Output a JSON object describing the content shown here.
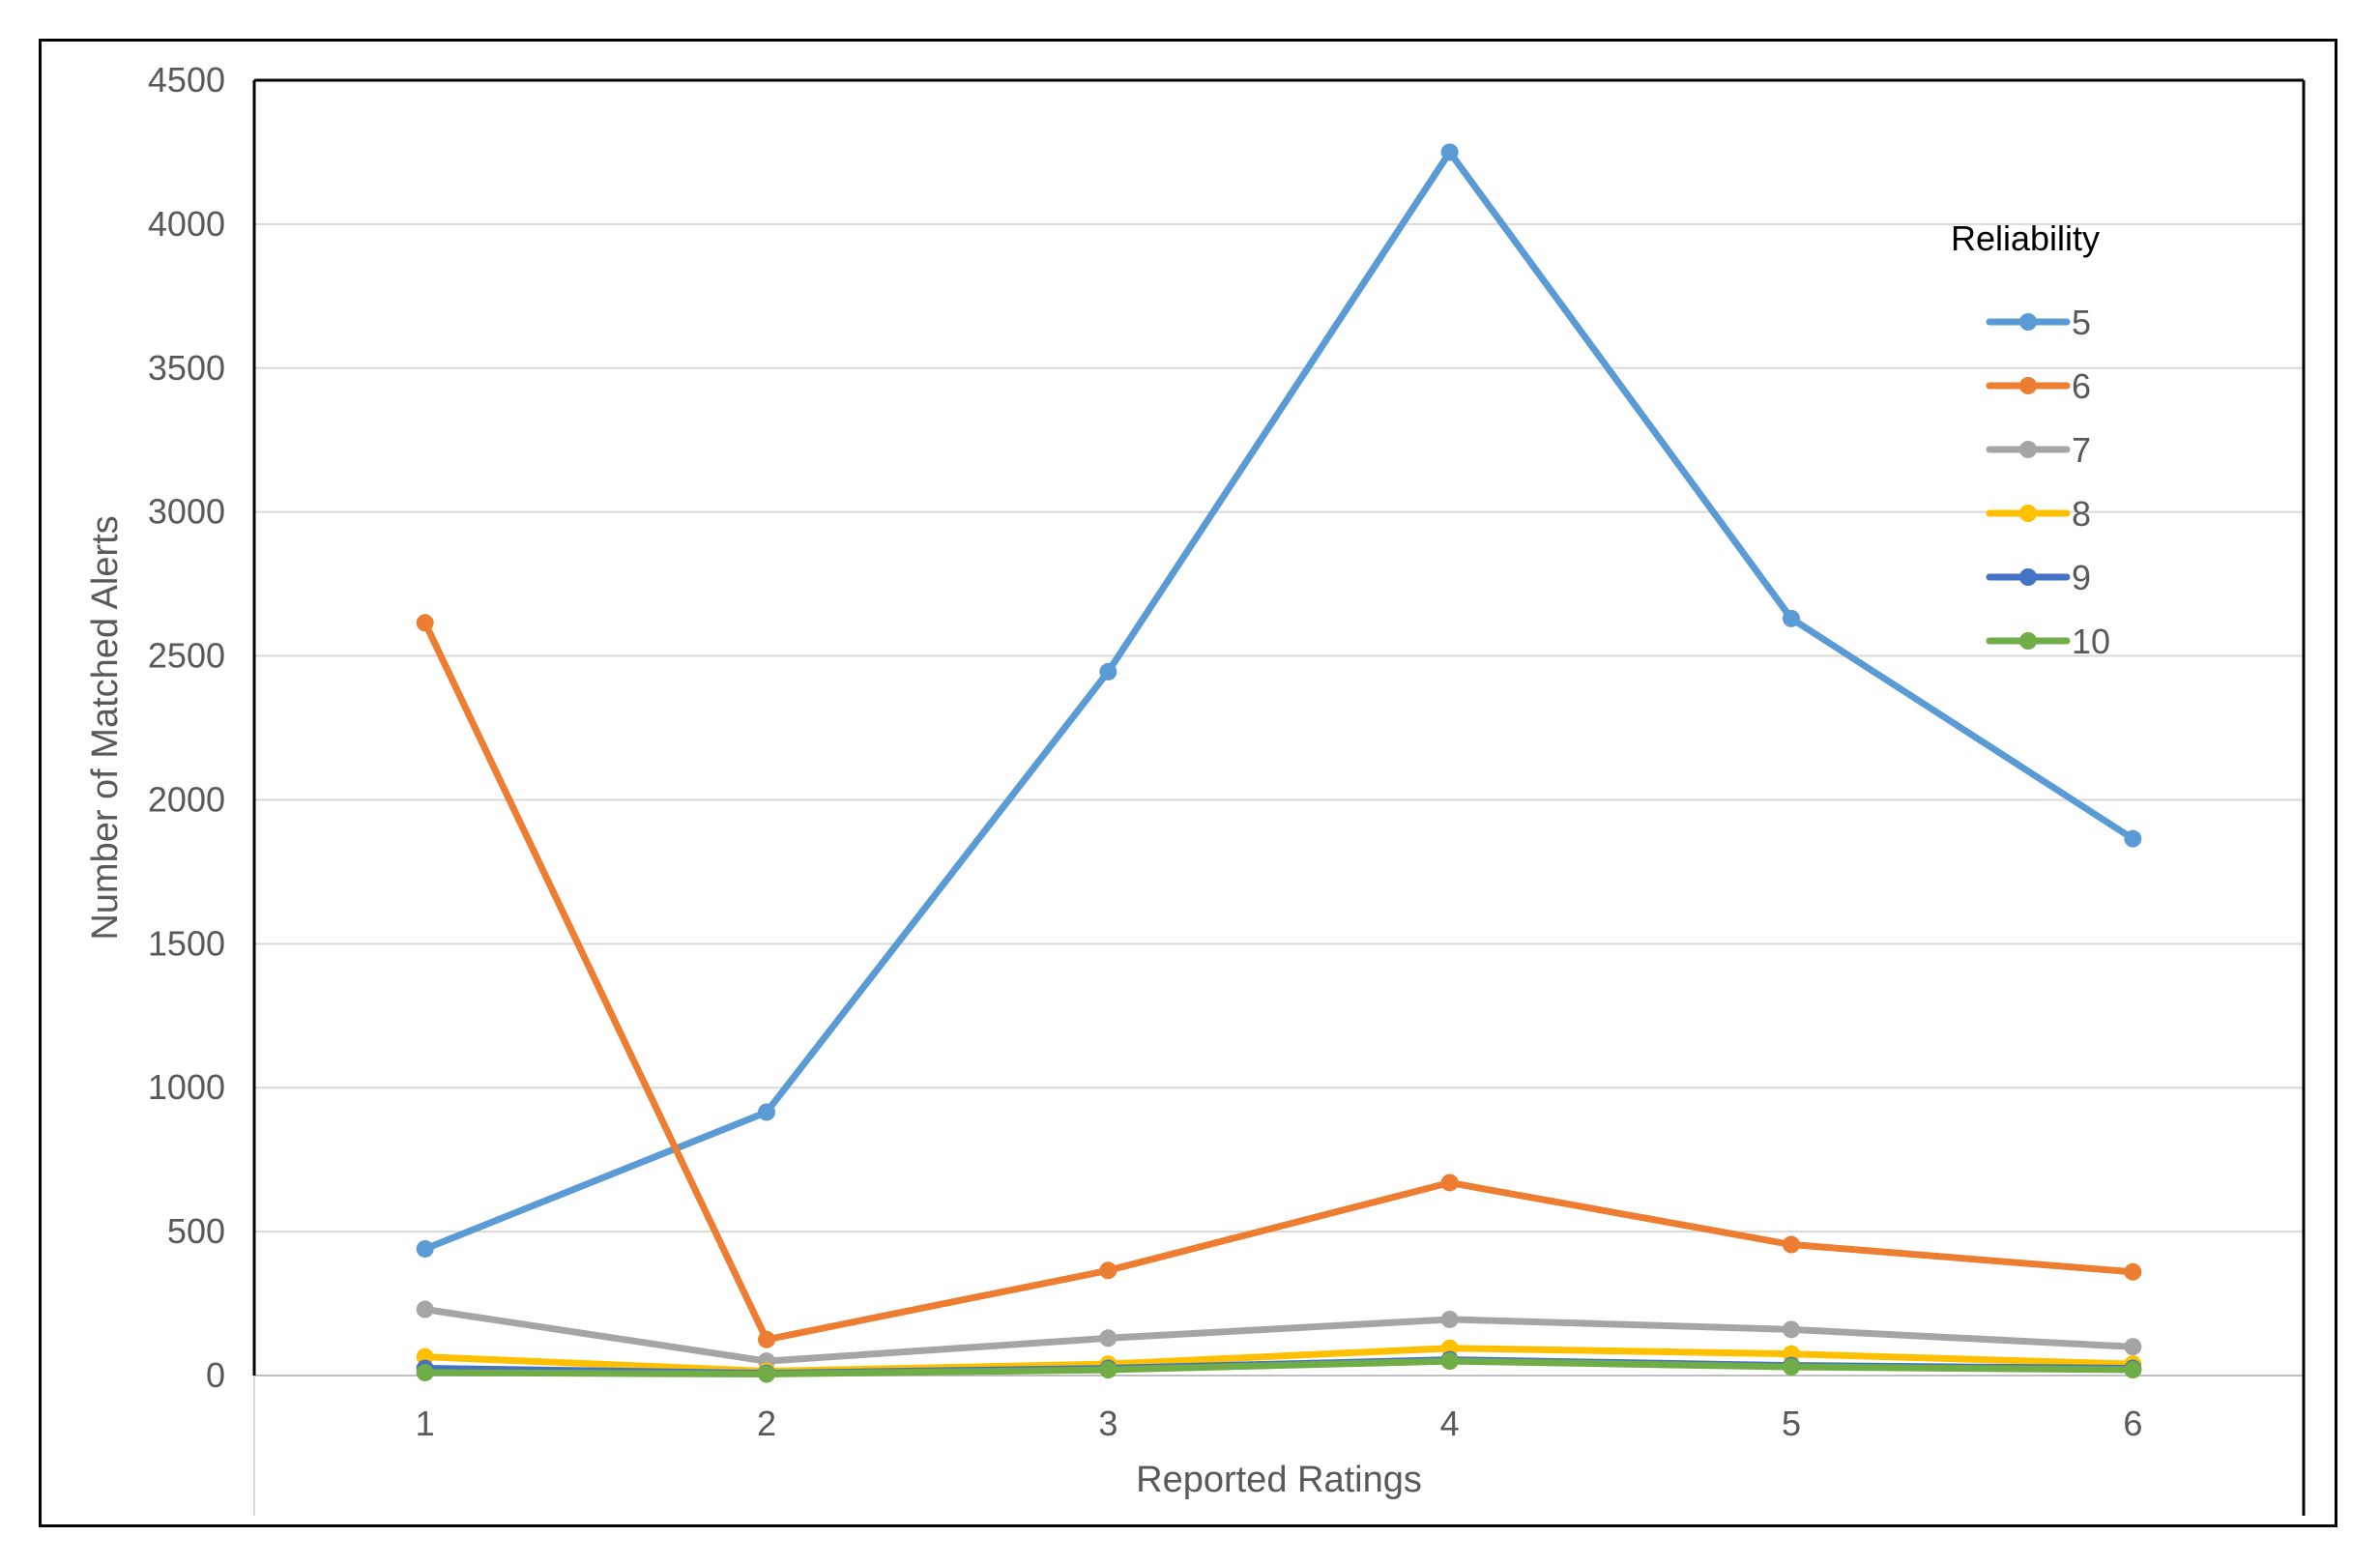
{
  "chart_data": {
    "type": "line",
    "title": "",
    "xlabel": "Reported Ratings",
    "ylabel": "Number of Matched Alerts",
    "x": [
      1,
      2,
      3,
      4,
      5,
      6
    ],
    "ylim": [
      0,
      4500
    ],
    "yticks": [
      0,
      500,
      1000,
      1500,
      2000,
      2500,
      3000,
      3500,
      4000,
      4500
    ],
    "grid": true,
    "legend": {
      "title": "Reliability",
      "placement": "right"
    },
    "series": [
      {
        "name": "5",
        "color": "#5B9BD5",
        "values": [
          440,
          915,
          2445,
          4250,
          2630,
          1865
        ]
      },
      {
        "name": "6",
        "color": "#ED7D31",
        "values": [
          2615,
          125,
          365,
          670,
          455,
          360
        ]
      },
      {
        "name": "7",
        "color": "#A5A5A5",
        "values": [
          230,
          50,
          130,
          195,
          160,
          100
        ]
      },
      {
        "name": "8",
        "color": "#FFC000",
        "values": [
          65,
          15,
          40,
          95,
          75,
          40
        ]
      },
      {
        "name": "9",
        "color": "#4472C4",
        "values": [
          25,
          8,
          25,
          55,
          35,
          25
        ]
      },
      {
        "name": "10",
        "color": "#70AD47",
        "values": [
          10,
          5,
          20,
          50,
          30,
          20
        ]
      }
    ]
  }
}
